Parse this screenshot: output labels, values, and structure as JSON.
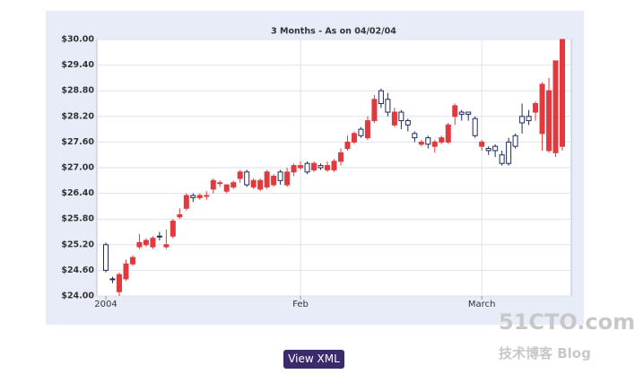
{
  "chart_data": {
    "type": "candlestick",
    "title": "3 Months - As on 04/02/04",
    "categories": [
      "2004",
      null,
      null,
      null,
      null,
      null,
      null,
      null,
      null,
      null,
      null,
      null,
      null,
      null,
      null,
      null,
      null,
      null,
      null,
      null,
      null,
      null,
      null,
      null,
      null,
      null,
      null,
      null,
      null,
      "Feb",
      null,
      null,
      null,
      null,
      null,
      null,
      null,
      null,
      null,
      null,
      null,
      null,
      null,
      null,
      null,
      null,
      null,
      null,
      null,
      null,
      null,
      null,
      null,
      null,
      null,
      null,
      "March",
      null,
      null,
      null,
      null,
      null,
      null,
      null,
      null,
      null,
      null,
      null,
      null
    ],
    "open": [
      25.2,
      24.4,
      24.1,
      24.4,
      24.75,
      25.15,
      25.2,
      25.15,
      25.4,
      25.15,
      25.4,
      25.85,
      26.05,
      26.35,
      26.3,
      26.35,
      26.5,
      26.65,
      26.45,
      26.55,
      26.75,
      26.9,
      26.55,
      26.5,
      26.55,
      26.6,
      26.9,
      26.6,
      26.9,
      27.0,
      27.1,
      26.95,
      27.05,
      26.95,
      26.95,
      27.15,
      27.45,
      27.6,
      27.9,
      27.7,
      28.1,
      28.8,
      28.6,
      28.0,
      28.3,
      28.1,
      27.8,
      27.55,
      27.7,
      27.5,
      27.6,
      27.6,
      28.2,
      28.3,
      28.3,
      28.15,
      27.5,
      27.45,
      27.5,
      27.3,
      27.6,
      27.75,
      28.2,
      28.2,
      28.3,
      27.8,
      27.4,
      27.35,
      27.5
    ],
    "high": [
      25.25,
      24.45,
      24.55,
      24.85,
      24.95,
      25.45,
      25.35,
      25.4,
      25.5,
      25.55,
      25.8,
      26.05,
      26.4,
      26.4,
      26.4,
      26.45,
      26.75,
      26.7,
      26.6,
      26.7,
      26.95,
      26.95,
      26.75,
      26.75,
      26.95,
      26.85,
      26.95,
      27.0,
      27.1,
      27.15,
      27.15,
      27.15,
      27.1,
      27.15,
      27.2,
      27.45,
      27.75,
      27.85,
      27.95,
      28.2,
      28.7,
      28.85,
      28.75,
      28.4,
      28.35,
      28.15,
      27.85,
      27.65,
      27.75,
      27.65,
      27.75,
      28.05,
      28.5,
      28.35,
      28.3,
      28.2,
      27.65,
      27.5,
      27.55,
      27.4,
      27.7,
      27.8,
      28.5,
      28.35,
      28.55,
      29.0,
      29.1,
      29.5,
      30.0
    ],
    "low": [
      24.55,
      24.3,
      24.0,
      24.35,
      24.7,
      25.1,
      25.15,
      25.1,
      25.3,
      25.1,
      25.35,
      25.8,
      26.0,
      26.2,
      26.25,
      26.25,
      26.4,
      26.55,
      26.4,
      26.5,
      26.65,
      26.55,
      26.5,
      26.45,
      26.5,
      26.55,
      26.6,
      26.55,
      26.8,
      26.95,
      26.85,
      26.9,
      26.95,
      26.9,
      26.9,
      27.05,
      27.4,
      27.55,
      27.7,
      27.65,
      28.05,
      28.4,
      28.2,
      27.95,
      27.9,
      27.85,
      27.6,
      27.5,
      27.45,
      27.35,
      27.55,
      27.55,
      28.0,
      28.1,
      28.1,
      27.7,
      27.4,
      27.3,
      27.25,
      27.05,
      27.05,
      27.45,
      27.8,
      28.0,
      28.1,
      27.4,
      27.35,
      27.25,
      27.4
    ],
    "close": [
      24.6,
      24.38,
      24.5,
      24.75,
      24.9,
      25.25,
      25.3,
      25.35,
      25.38,
      25.2,
      25.75,
      25.9,
      26.35,
      26.3,
      26.35,
      26.35,
      26.7,
      26.65,
      26.6,
      26.65,
      26.9,
      26.6,
      26.7,
      26.7,
      26.9,
      26.8,
      26.7,
      26.9,
      27.05,
      27.05,
      26.9,
      27.1,
      27.0,
      27.05,
      27.15,
      27.35,
      27.6,
      27.8,
      27.75,
      28.1,
      28.6,
      28.5,
      28.3,
      28.3,
      28.1,
      28.0,
      27.7,
      27.6,
      27.55,
      27.6,
      27.7,
      28.0,
      28.45,
      28.25,
      28.25,
      27.75,
      27.6,
      27.4,
      27.4,
      27.1,
      27.1,
      27.5,
      28.05,
      28.1,
      28.5,
      28.95,
      28.8,
      29.5,
      30.0
    ],
    "up_color": "#e03a3e",
    "down_color": "#ffffff",
    "outline_color": "#1c2c5c",
    "ylim": [
      24,
      30
    ],
    "yticks": [
      {
        "value": 24,
        "label": "$24.00"
      },
      {
        "value": 24.6,
        "label": "$24.60"
      },
      {
        "value": 25.2,
        "label": "$25.20"
      },
      {
        "value": 25.8,
        "label": "$25.80"
      },
      {
        "value": 26.4,
        "label": "$26.40"
      },
      {
        "value": 27,
        "label": "$27.00"
      },
      {
        "value": 27.6,
        "label": "$27.60"
      },
      {
        "value": 28.2,
        "label": "$28.20"
      },
      {
        "value": 28.8,
        "label": "$28.80"
      },
      {
        "value": 29.4,
        "label": "$29.40"
      },
      {
        "value": 30,
        "label": "$30.00"
      }
    ],
    "grid": true
  },
  "button": "View XML",
  "watermark": {
    "site": "51CTO.com",
    "blog": "技术博客  Blog"
  }
}
